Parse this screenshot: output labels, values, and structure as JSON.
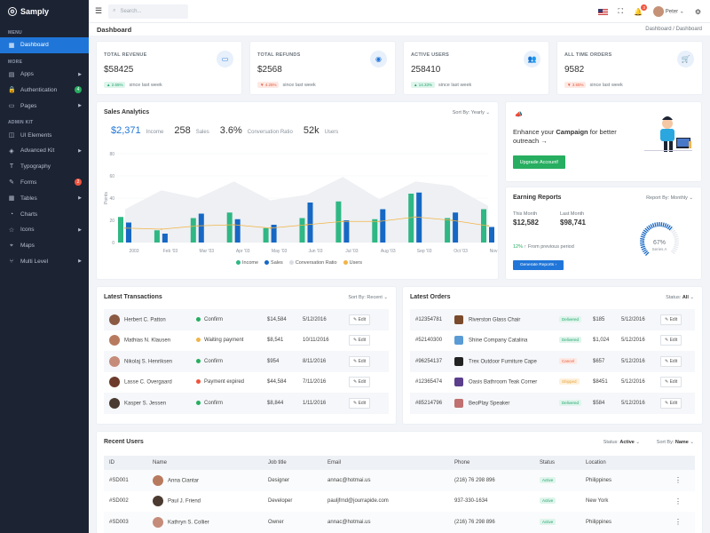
{
  "brand": "Samply",
  "sidebar": {
    "sections": {
      "menu": "MENU",
      "more": "MORE",
      "admin": "ADMIN KIT"
    },
    "dashboard": "Dashboard",
    "more": [
      {
        "label": "Apps",
        "icon": "apps-icon",
        "arrow": true
      },
      {
        "label": "Authentication",
        "icon": "lock-icon",
        "badge": "4",
        "badge_color": "#27ae60"
      },
      {
        "label": "Pages",
        "icon": "pages-icon",
        "arrow": true
      }
    ],
    "admin": [
      {
        "label": "UI Elements",
        "icon": "cube-icon"
      },
      {
        "label": "Advanced Kit",
        "icon": "layers-icon",
        "arrow": true
      },
      {
        "label": "Typography",
        "icon": "text-icon"
      },
      {
        "label": "Forms",
        "icon": "form-icon",
        "badge": "2",
        "badge_color": "#f0543e"
      },
      {
        "label": "Tables",
        "icon": "table-icon",
        "arrow": true
      },
      {
        "label": "Charts",
        "icon": "chart-icon"
      },
      {
        "label": "Icons",
        "icon": "star-icon",
        "arrow": true
      },
      {
        "label": "Maps",
        "icon": "map-pin-icon"
      },
      {
        "label": "Multi Level",
        "icon": "share-icon",
        "arrow": true
      }
    ]
  },
  "topbar": {
    "search_placeholder": "Search...",
    "notification_count": "3",
    "user": "Peter"
  },
  "page": {
    "title": "Dashboard",
    "breadcrumb": [
      "Dashboard",
      "Dashboard"
    ]
  },
  "stats": [
    {
      "label": "TOTAL REVENUE",
      "value": "$58425",
      "change": "2.65%",
      "dir": "up",
      "since": "since last week",
      "icon": "money-icon"
    },
    {
      "label": "TOTAL REFUNDS",
      "value": "$2568",
      "change": "4.25%",
      "dir": "down",
      "since": "since last week",
      "icon": "refund-icon"
    },
    {
      "label": "ACTIVE USERS",
      "value": "258410",
      "change": "14.33%",
      "dir": "up",
      "since": "since last week",
      "icon": "users-icon"
    },
    {
      "label": "ALL TIME ORDERS",
      "value": "9582",
      "change": "3.55%",
      "dir": "down",
      "since": "since last week",
      "icon": "cart-icon"
    }
  ],
  "sales": {
    "title": "Sales Analytics",
    "sort_label": "Sort By:",
    "sort_value": "Yearly",
    "kpis": [
      {
        "value": "$2,371",
        "label": "Income"
      },
      {
        "value": "258",
        "label": "Sales"
      },
      {
        "value": "3.6%",
        "label": "Conversation Ratio"
      },
      {
        "value": "52k",
        "label": "Users"
      }
    ]
  },
  "chart_data": {
    "type": "bar",
    "categories": [
      "2003",
      "Feb '03",
      "Mar '03",
      "Apr '03",
      "May '03",
      "Jun '03",
      "Jul '03",
      "Aug '03",
      "Sep '03",
      "Oct '03",
      "Nov '03"
    ],
    "ylabel": "Points",
    "ylim": [
      0,
      80
    ],
    "yticks": [
      0,
      20,
      40,
      60,
      80
    ],
    "series": [
      {
        "name": "Income",
        "type": "bar",
        "color": "#2fb784",
        "values": [
          23,
          11,
          22,
          27,
          13,
          22,
          37,
          21,
          44,
          22,
          30
        ]
      },
      {
        "name": "Sales",
        "type": "bar",
        "color": "#1668c4",
        "values": [
          18,
          8,
          26,
          21,
          16,
          36,
          20,
          30,
          45,
          27,
          14
        ]
      },
      {
        "name": "Conversation Ratio",
        "type": "area",
        "color": "#eef0f3",
        "values": [
          30,
          47,
          40,
          55,
          38,
          43,
          59,
          39,
          55,
          51,
          33
        ]
      },
      {
        "name": "Users",
        "type": "line",
        "color": "#f2b447",
        "values": [
          13,
          12,
          15,
          16,
          13,
          16,
          19,
          19,
          23,
          20,
          15
        ]
      }
    ]
  },
  "campaign": {
    "text_a": "Enhance your ",
    "text_b": "Campaign",
    "text_c": " for better outreach →",
    "button": "Upgrade Account!"
  },
  "earning": {
    "title": "Earning Reports",
    "sort_label": "Report By:",
    "sort_value": "Monthly",
    "this_month_label": "This Month",
    "this_month": "$12,582",
    "last_month_label": "Last Month",
    "last_month": "$98,741",
    "pct": "12%",
    "pct_text": "From previous period",
    "gauge_value": 67,
    "gauge_label": "67%",
    "gauge_series": "Series A",
    "button": "Generate Reports"
  },
  "transactions": {
    "title": "Latest Transactions",
    "sort_label": "Sort By:",
    "sort_value": "Recent",
    "edit": "Edit",
    "rows": [
      {
        "name": "Herbert C. Patton",
        "status": "Confirm",
        "sc": "#27ae60",
        "amount": "$14,584",
        "date": "5/12/2016",
        "av": "#8a5a44"
      },
      {
        "name": "Mathias N. Klausen",
        "status": "Waiting payment",
        "sc": "#f2b447",
        "amount": "$8,541",
        "date": "10/11/2016",
        "av": "#b87a5e"
      },
      {
        "name": "Nikolaj S. Henriksen",
        "status": "Confirm",
        "sc": "#27ae60",
        "amount": "$954",
        "date": "8/11/2016",
        "av": "#c58c7a"
      },
      {
        "name": "Lasse C. Overgaard",
        "status": "Payment expired",
        "sc": "#f0543e",
        "amount": "$44,584",
        "date": "7/11/2016",
        "av": "#6c3b2c"
      },
      {
        "name": "Kasper S. Jessen",
        "status": "Confirm",
        "sc": "#27ae60",
        "amount": "$8,844",
        "date": "1/11/2016",
        "av": "#4a3a30"
      }
    ]
  },
  "orders": {
    "title": "Latest Orders",
    "status_label": "Status:",
    "status_value": "All",
    "edit": "Edit",
    "rows": [
      {
        "id": "#12354781",
        "product": "Riverston Glass Chair",
        "status": "Delivered",
        "sk": "delivered",
        "amount": "$185",
        "date": "5/12/2016",
        "pc": "#7a4a2c"
      },
      {
        "id": "#52140300",
        "product": "Shine Company Catalina",
        "status": "Delivered",
        "sk": "delivered",
        "amount": "$1,024",
        "date": "5/12/2016",
        "pc": "#5a9bd5"
      },
      {
        "id": "#96254137",
        "product": "Trex Outdoor Furniture Cape",
        "status": "Cancel",
        "sk": "cancel",
        "amount": "$657",
        "date": "5/12/2016",
        "pc": "#222222"
      },
      {
        "id": "#12365474",
        "product": "Oasis Bathroom Teak Corner",
        "status": "Shipped",
        "sk": "shipped",
        "amount": "$8451",
        "date": "5/12/2016",
        "pc": "#5b3f8c"
      },
      {
        "id": "#85214796",
        "product": "BeoPlay Speaker",
        "status": "Delivered",
        "sk": "delivered",
        "amount": "$584",
        "date": "5/12/2016",
        "pc": "#c07070"
      }
    ]
  },
  "recent_users": {
    "title": "Recent Users",
    "status_label": "Status:",
    "status_value": "Active",
    "sort_label": "Sort By:",
    "sort_value": "Name",
    "columns": [
      "ID",
      "Name",
      "Job title",
      "Email",
      "Phone",
      "Status",
      "Location"
    ],
    "rows": [
      {
        "id": "#SD001",
        "name": "Anna Ciantar",
        "job": "Designer",
        "email": "annac@hotmai.us",
        "phone": "(216) 76 298 896",
        "status": "Active",
        "location": "Philippines",
        "av": "#b87a5e"
      },
      {
        "id": "#SD002",
        "name": "Paul J. Friend",
        "job": "Developer",
        "email": "pauljfrnd@jourrapide.com",
        "phone": "937-330-1634",
        "status": "Active",
        "location": "New York",
        "av": "#4a3a30"
      },
      {
        "id": "#SD003",
        "name": "Kathryn S. Collier",
        "job": "Owner",
        "email": "annac@hotmai.us",
        "phone": "(216) 76 298 896",
        "status": "Active",
        "location": "Philippines",
        "av": "#c58c7a"
      }
    ]
  }
}
